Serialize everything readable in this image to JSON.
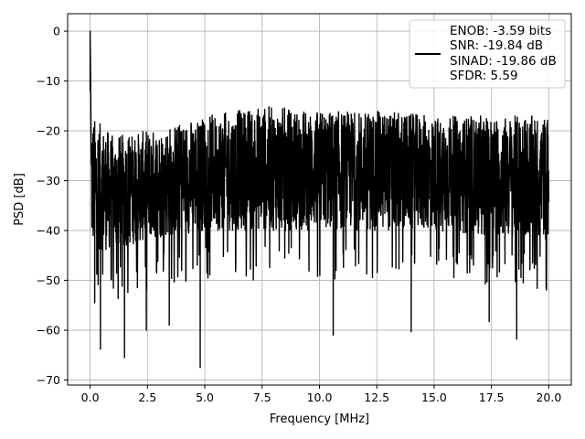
{
  "chart_data": {
    "type": "line",
    "title": "",
    "xlabel": "Frequency [MHz]",
    "ylabel": "PSD [dB]",
    "xlim": [
      -0.98,
      20.98
    ],
    "ylim": [
      -71,
      3.5
    ],
    "grid": true,
    "legend_position": "top-right",
    "x_ticks": [
      0.0,
      2.5,
      5.0,
      7.5,
      10.0,
      12.5,
      15.0,
      17.5,
      20.0
    ],
    "x_tick_labels": [
      "0.0",
      "2.5",
      "5.0",
      "7.5",
      "10.0",
      "12.5",
      "15.0",
      "17.5",
      "20.0"
    ],
    "y_ticks": [
      0,
      -10,
      -20,
      -30,
      -40,
      -50,
      -60,
      -70
    ],
    "y_tick_labels": [
      "0",
      "−10",
      "−20",
      "−30",
      "−40",
      "−50",
      "−60",
      "−70"
    ],
    "legend": [
      "ENOB: -3.59 bits",
      "SNR: -19.84 dB",
      "SINAD: -19.86 dB",
      "SFDR: 5.59"
    ],
    "series_color": "#000000",
    "series": [
      {
        "x_range": [
          0,
          20
        ],
        "peak": {
          "x": 0.0,
          "y": 0
        },
        "upper_envelope": [
          [
            0.1,
            -17
          ],
          [
            1,
            -21
          ],
          [
            2.5,
            -20
          ],
          [
            5,
            -17
          ],
          [
            7.5,
            -15
          ],
          [
            10,
            -16
          ],
          [
            12.5,
            -16
          ],
          [
            15,
            -17
          ],
          [
            17.5,
            -17
          ],
          [
            20,
            -17
          ]
        ],
        "lower_envelope": [
          [
            0.1,
            -44
          ],
          [
            1,
            -44
          ],
          [
            2.5,
            -42
          ],
          [
            5,
            -40
          ],
          [
            7.5,
            -40
          ],
          [
            10,
            -40
          ],
          [
            12.5,
            -40
          ],
          [
            15,
            -40
          ],
          [
            17.5,
            -41
          ],
          [
            20,
            -42
          ]
        ],
        "notable_dips": [
          [
            0.2,
            -54.5
          ],
          [
            0.45,
            -63.8
          ],
          [
            1.5,
            -65.5
          ],
          [
            2.45,
            -60
          ],
          [
            3.45,
            -59
          ],
          [
            4.8,
            -67.5
          ],
          [
            10.6,
            -61
          ],
          [
            14,
            -60.3
          ],
          [
            17.4,
            -58.3
          ],
          [
            18.6,
            -61.8
          ]
        ]
      }
    ]
  }
}
